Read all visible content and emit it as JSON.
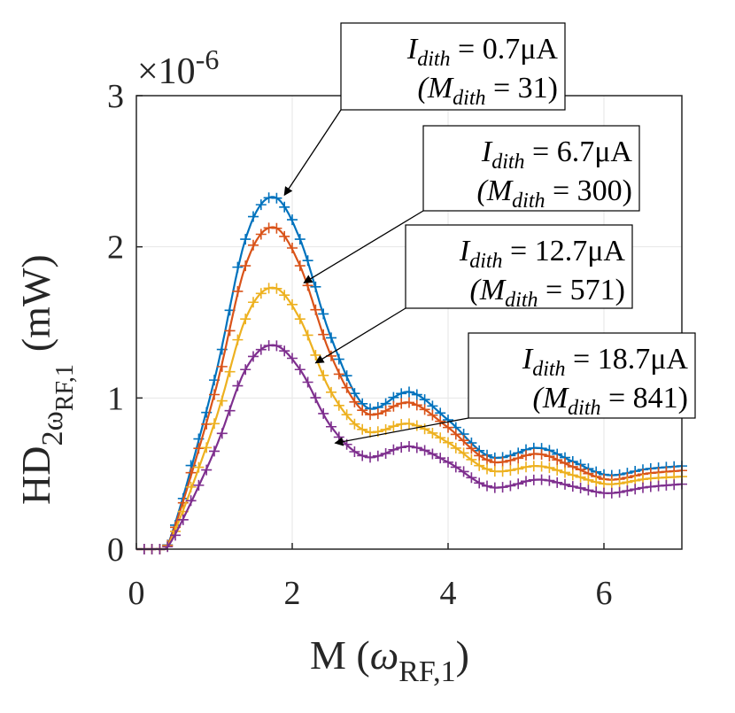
{
  "chart_data": {
    "type": "line",
    "xlabel_main": "M (",
    "xlabel_omega": "ω",
    "xlabel_sub": "RF,1",
    "xlabel_close": ")",
    "ylabel_main": "HD",
    "ylabel_sub1": "2ω",
    "ylabel_sub2": "RF,1",
    "ylabel_unit": "(mW)",
    "y_exponent_prefix": "×10",
    "y_exponent_power": "-6",
    "xlim": [
      0,
      7
    ],
    "ylim": [
      0,
      3
    ],
    "xticks": [
      0,
      2,
      4,
      6
    ],
    "xtick_labels": [
      "0",
      "2",
      "4",
      "6"
    ],
    "yticks": [
      0,
      1,
      2,
      3
    ],
    "ytick_labels": [
      "0",
      "1",
      "2",
      "3"
    ],
    "grid": true,
    "marker": "+",
    "series": [
      {
        "name": "I_dith = 0.7μA (M_dith = 31)",
        "color": "#0072BD",
        "peak": 2.33,
        "trough1": 0.94,
        "bump2": 1.04,
        "trough2": 0.61,
        "bump3": 0.67,
        "trough3": 0.49,
        "end": 0.55
      },
      {
        "name": "I_dith = 6.7μA (M_dith = 300)",
        "color": "#D95319",
        "peak": 2.13,
        "trough1": 0.9,
        "bump2": 0.97,
        "trough2": 0.58,
        "bump3": 0.63,
        "trough3": 0.46,
        "end": 0.52
      },
      {
        "name": "I_dith = 12.7μA (M_dith = 571)",
        "color": "#EDB120",
        "peak": 1.73,
        "trough1": 0.78,
        "bump2": 0.83,
        "trough2": 0.52,
        "bump3": 0.55,
        "trough3": 0.43,
        "end": 0.48
      },
      {
        "name": "I_dith = 18.7μA (M_dith = 841)",
        "color": "#7E2F8E",
        "peak": 1.35,
        "trough1": 0.61,
        "bump2": 0.68,
        "trough2": 0.41,
        "bump3": 0.46,
        "trough3": 0.37,
        "end": 0.43
      }
    ],
    "annotations": [
      {
        "line1_var": "I",
        "line1_sub": "dith",
        "line1_val": " = 0.7μA",
        "line2_open": "(M",
        "line2_sub": "dith",
        "line2_val": " = 31)",
        "target_x": 1.9,
        "target_y": 2.33
      },
      {
        "line1_var": "I",
        "line1_sub": "dith",
        "line1_val": " = 6.7μA",
        "line2_open": "(M",
        "line2_sub": "dith",
        "line2_val": " = 300)",
        "target_x": 2.15,
        "target_y": 1.75
      },
      {
        "line1_var": "I",
        "line1_sub": "dith",
        "line1_val": " = 12.7μA",
        "line2_open": "(M",
        "line2_sub": "dith",
        "line2_val": " = 571)",
        "target_x": 2.3,
        "target_y": 1.22
      },
      {
        "line1_var": "I",
        "line1_sub": "dith",
        "line1_val": " = 18.7μA",
        "line2_open": "(M",
        "line2_sub": "dith",
        "line2_val": " = 841)",
        "target_x": 2.55,
        "target_y": 0.69
      }
    ]
  }
}
